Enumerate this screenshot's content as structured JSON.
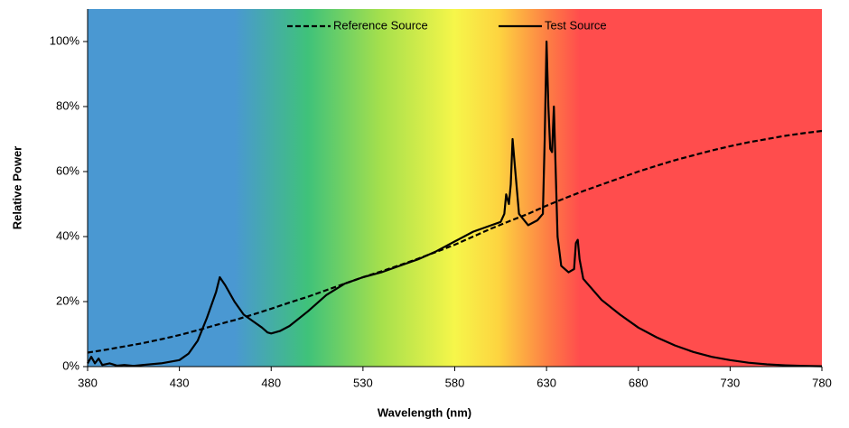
{
  "chart_data": {
    "type": "line",
    "x_label": "Wavelength (nm)",
    "y_label": "Relative Power",
    "xlim": [
      380,
      780
    ],
    "xticks": [
      380,
      430,
      480,
      530,
      580,
      630,
      680,
      730,
      780
    ],
    "ylim": [
      0,
      110
    ],
    "yticks": [
      {
        "value": 0,
        "label": "0%"
      },
      {
        "value": 20,
        "label": "20%"
      },
      {
        "value": 40,
        "label": "40%"
      },
      {
        "value": 60,
        "label": "60%"
      },
      {
        "value": 80,
        "label": "80%"
      },
      {
        "value": 100,
        "label": "100%"
      }
    ],
    "series": [
      {
        "name": "Reference Source",
        "color": "#000000",
        "dash": true,
        "x": [
          380,
          390,
          400,
          410,
          420,
          430,
          440,
          450,
          460,
          470,
          480,
          490,
          500,
          510,
          520,
          530,
          540,
          550,
          560,
          570,
          580,
          590,
          600,
          610,
          620,
          630,
          640,
          650,
          660,
          670,
          680,
          690,
          700,
          710,
          720,
          730,
          740,
          750,
          760,
          770,
          780
        ],
        "values": [
          4.3,
          5.2,
          6.2,
          7.2,
          8.4,
          9.7,
          11.2,
          12.8,
          14.3,
          16,
          17.8,
          19.7,
          21.5,
          23.5,
          25.5,
          27.5,
          29.3,
          31.2,
          33.2,
          35.3,
          37.5,
          40,
          42.5,
          44.8,
          47,
          49.5,
          51.8,
          54,
          56,
          58,
          60,
          61.8,
          63.5,
          65,
          66.5,
          67.8,
          69,
          70,
          71,
          71.8,
          72.5
        ]
      },
      {
        "name": "Test Source",
        "color": "#000000",
        "dash": false,
        "x": [
          380,
          382,
          384,
          386,
          388,
          392,
          396,
          400,
          405,
          410,
          420,
          430,
          435,
          440,
          445,
          450,
          452,
          455,
          460,
          465,
          470,
          475,
          478,
          480,
          485,
          490,
          500,
          510,
          520,
          530,
          540,
          550,
          560,
          570,
          580,
          590,
          595,
          600,
          605,
          607,
          608,
          609.5,
          610.5,
          611.5,
          613,
          615,
          620,
          625,
          628,
          629,
          630,
          631,
          632,
          633,
          634,
          635,
          636,
          638,
          642,
          645,
          646,
          647,
          648,
          650,
          660,
          670,
          680,
          690,
          700,
          710,
          720,
          730,
          740,
          750,
          760,
          770,
          780
        ],
        "values": [
          1,
          3,
          1,
          2.5,
          0.5,
          1,
          0.3,
          0.5,
          0.2,
          0.5,
          1,
          2,
          4,
          8,
          15,
          23,
          27.5,
          25,
          20,
          16,
          14,
          12,
          10.5,
          10.2,
          11,
          12.5,
          17,
          22,
          25.5,
          27.5,
          29,
          31,
          33,
          35.5,
          38.5,
          41.5,
          42.5,
          43.5,
          44.5,
          47,
          53,
          50,
          56,
          70,
          60,
          47,
          43.5,
          45,
          47,
          70,
          100,
          80,
          67,
          66,
          80,
          60,
          40,
          31,
          29,
          30,
          38,
          39,
          33,
          27,
          20.5,
          16,
          12,
          9,
          6.5,
          4.5,
          3,
          2,
          1.2,
          0.7,
          0.4,
          0.2,
          0.1
        ]
      }
    ]
  }
}
